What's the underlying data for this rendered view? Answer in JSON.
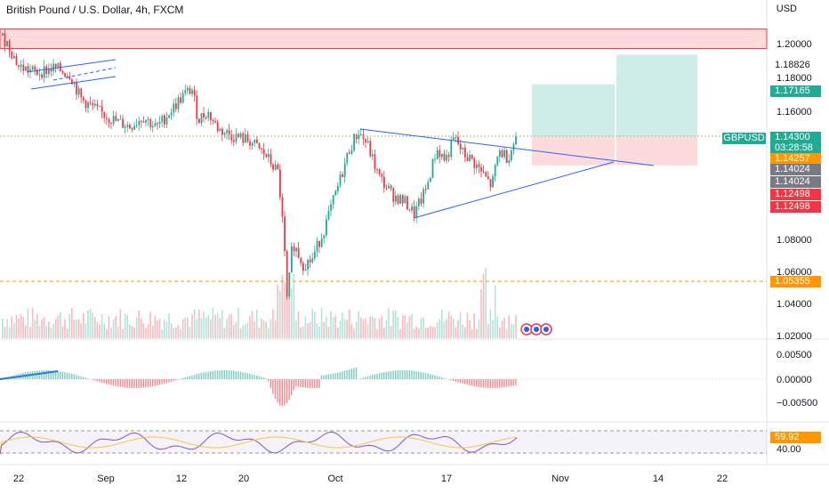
{
  "header": {
    "title": "British Pound / U.S. Dollar, 4h, FXCM",
    "currency": "USD"
  },
  "colors": {
    "up": "#22ab94",
    "down": "#f23645",
    "trend": "#2962ff",
    "orange": "#ff9800",
    "zone_red": "rgba(242,54,69,0.18)",
    "zone_green": "rgba(34,171,148,0.22)"
  },
  "price_axis": {
    "ticks": [
      "1.20000",
      "1.18000",
      "1.16000",
      "1.08000",
      "1.06000",
      "1.04000",
      "1.02000"
    ]
  },
  "price_labels": [
    {
      "text": "1.18826",
      "kind": "plain"
    },
    {
      "text": "1.17165",
      "kind": "green"
    },
    {
      "text": "1.14300",
      "kind": "green"
    },
    {
      "text": "03:28:58",
      "kind": "green"
    },
    {
      "text": "1.14257",
      "kind": "orange"
    },
    {
      "text": "1.14024",
      "kind": "gray"
    },
    {
      "text": "1.14024",
      "kind": "gray"
    },
    {
      "text": "1.12498",
      "kind": "red"
    },
    {
      "text": "1.12498",
      "kind": "red"
    },
    {
      "text": "1.05355",
      "kind": "orange"
    }
  ],
  "symbol_tag": "GBPUSD",
  "macd_axis": {
    "ticks": [
      "0.00500",
      "0.00000",
      "−0.00500"
    ]
  },
  "rsi_axis": {
    "value": "59.92",
    "level": "40.00"
  },
  "time_axis": {
    "labels": [
      "22",
      "Sep",
      "12",
      "20",
      "Oct",
      "17",
      "Nov",
      "14",
      "22"
    ]
  },
  "chart_data": {
    "type": "candlestick",
    "symbol": "GBPUSD",
    "timeframe": "4h",
    "price_range": [
      1.02,
      1.21
    ],
    "last_price": 1.143,
    "countdown": "03:28:58",
    "levels": {
      "resistance_zone": [
        1.197,
        1.209
      ],
      "support_line": 1.05355,
      "take_profit_1": 1.17165,
      "take_profit_2": 1.18826,
      "entry": 1.14257,
      "stop_loss": 1.12498
    },
    "path": [
      [
        0,
        1.205
      ],
      [
        8,
        1.2
      ],
      [
        20,
        1.186
      ],
      [
        40,
        1.182
      ],
      [
        60,
        1.185
      ],
      [
        78,
        1.181
      ],
      [
        90,
        1.166
      ],
      [
        110,
        1.158
      ],
      [
        130,
        1.152
      ],
      [
        145,
        1.149
      ],
      [
        160,
        1.155
      ],
      [
        175,
        1.148
      ],
      [
        190,
        1.158
      ],
      [
        205,
        1.168
      ],
      [
        215,
        1.172
      ],
      [
        222,
        1.153
      ],
      [
        232,
        1.158
      ],
      [
        245,
        1.147
      ],
      [
        262,
        1.143
      ],
      [
        280,
        1.14
      ],
      [
        298,
        1.131
      ],
      [
        312,
        1.12
      ],
      [
        318,
        1.082
      ],
      [
        322,
        1.04
      ],
      [
        328,
        1.078
      ],
      [
        340,
        1.064
      ],
      [
        350,
        1.067
      ],
      [
        365,
        1.088
      ],
      [
        378,
        1.11
      ],
      [
        392,
        1.135
      ],
      [
        402,
        1.146
      ],
      [
        412,
        1.138
      ],
      [
        425,
        1.118
      ],
      [
        440,
        1.107
      ],
      [
        455,
        1.102
      ],
      [
        465,
        1.095
      ],
      [
        478,
        1.11
      ],
      [
        490,
        1.135
      ],
      [
        500,
        1.128
      ],
      [
        510,
        1.142
      ],
      [
        520,
        1.132
      ],
      [
        530,
        1.128
      ],
      [
        540,
        1.121
      ],
      [
        552,
        1.112
      ],
      [
        560,
        1.134
      ],
      [
        570,
        1.13
      ],
      [
        580,
        1.143
      ]
    ],
    "rsi": {
      "value": 59.92
    }
  }
}
